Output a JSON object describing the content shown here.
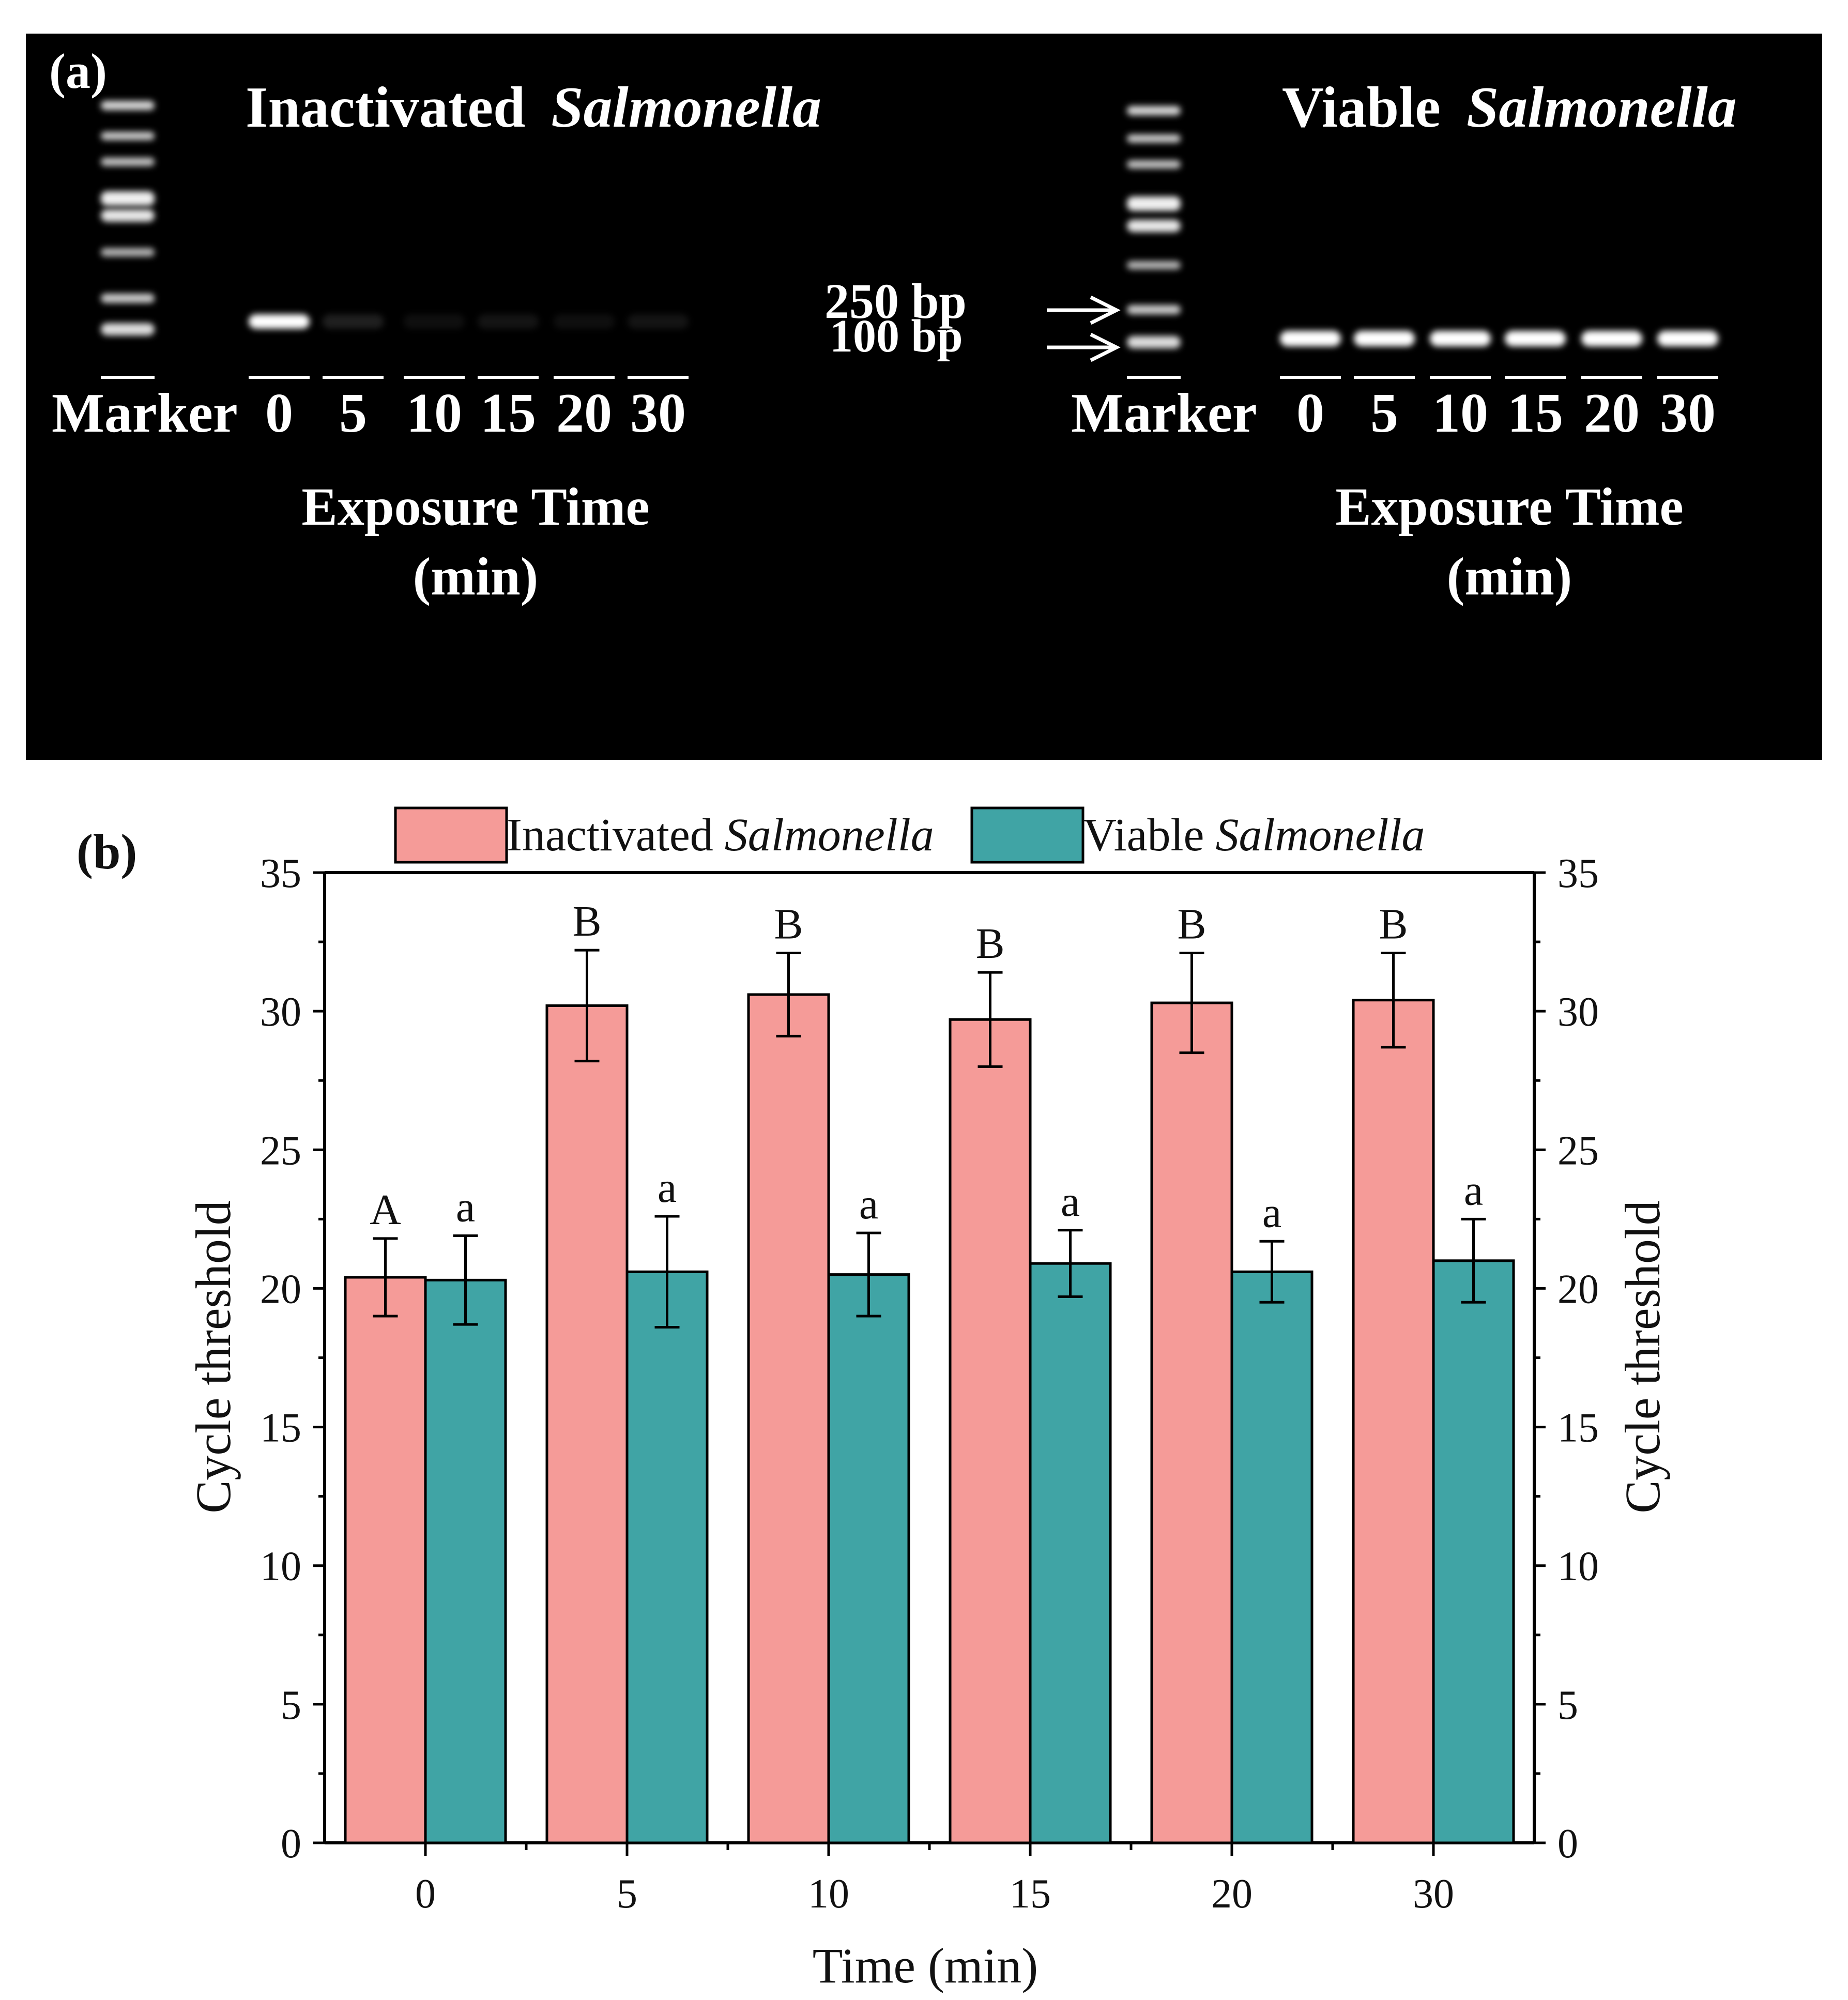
{
  "panel_a": {
    "label": "(a)",
    "left_title": {
      "text": "Inactivated",
      "italic": "Salmonella"
    },
    "right_title": {
      "text": "Viable",
      "italic": "Salmonella"
    },
    "size_labels": [
      "250 bp",
      "100 bp"
    ],
    "marker_label": "Marker",
    "lanes": [
      "0",
      "5",
      "10",
      "15",
      "20",
      "30"
    ],
    "axis_caption_line1": "Exposure Time",
    "axis_caption_line2": "(min)",
    "left_band_intensity": [
      1.0,
      0.12,
      0.06,
      0.08,
      0.06,
      0.08
    ],
    "right_band_intensity": [
      1.0,
      1.0,
      1.0,
      1.0,
      1.0,
      1.0
    ],
    "colors": {
      "background": "#000000",
      "band": "#ffffff"
    }
  },
  "chart_data": {
    "panel_label": "(b)",
    "type": "bar",
    "xlabel": "Time (min)",
    "ylabel": "Cycle threshold",
    "ylabel_right": "Cycle threshold",
    "ylim": [
      0,
      35
    ],
    "yticks": [
      "0",
      "5",
      "10",
      "15",
      "20",
      "25",
      "30",
      "35"
    ],
    "categories": [
      "0",
      "5",
      "10",
      "15",
      "20",
      "30"
    ],
    "series": [
      {
        "name": "Inactivated",
        "name_italic": "Salmonella",
        "color": "#f59b98",
        "values": [
          20.4,
          30.2,
          30.6,
          29.7,
          30.3,
          30.4
        ],
        "errors": [
          1.4,
          2.0,
          1.5,
          1.7,
          1.8,
          1.7
        ],
        "letters": [
          "A",
          "B",
          "B",
          "B",
          "B",
          "B"
        ]
      },
      {
        "name": "Viable",
        "name_italic": "Salmonella",
        "color": "#40a4a5",
        "values": [
          20.3,
          20.6,
          20.5,
          20.9,
          20.6,
          21.0
        ],
        "errors": [
          1.6,
          2.0,
          1.5,
          1.2,
          1.1,
          1.5
        ],
        "letters": [
          "a",
          "a",
          "a",
          "a",
          "a",
          "a"
        ]
      }
    ],
    "legend_position": "top"
  }
}
